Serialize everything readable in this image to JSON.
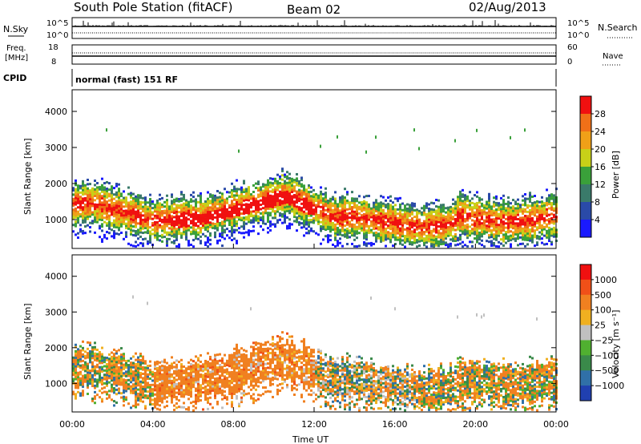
{
  "header": {
    "station": "South Pole Station (fitACF)",
    "beam": "Beam 02",
    "date": "02/Aug/2013"
  },
  "small_panels": {
    "nsky_label": "N.Sky",
    "nsky_ticks": [
      "10^5",
      "10^0"
    ],
    "nsearch_label": "N.Search",
    "nsearch_ticks": [
      "10^5",
      "10^0"
    ],
    "freq_label_line1": "Freq.",
    "freq_label_line2": "[MHz]",
    "freq_ticks": [
      "18",
      "8"
    ],
    "nave_label": "Nave",
    "nave_ticks": [
      "60",
      "0"
    ],
    "cpid_label": "CPID",
    "cpid_text": "normal (fast) 151 RF"
  },
  "chart_data": [
    {
      "type": "heatmap",
      "name": "power",
      "ylabel": "Slant Range [km]",
      "yticks": [
        "1000",
        "2000",
        "3000",
        "4000"
      ],
      "ylim": [
        200,
        4600
      ],
      "colorbar_label": "Power [dB]",
      "colorbar_ticks": [
        "4",
        "8",
        "12",
        "16",
        "20",
        "24",
        "28"
      ],
      "colors": [
        "#1a1aff",
        "#2a4aa8",
        "#3a7a6a",
        "#3aa03a",
        "#c8d018",
        "#f0a018",
        "#f07018",
        "#f01010"
      ]
    },
    {
      "type": "heatmap",
      "name": "velocity",
      "ylabel": "Slant Range [km]",
      "yticks": [
        "1000",
        "2000",
        "3000",
        "4000"
      ],
      "ylim": [
        200,
        4600
      ],
      "xlabel": "Time UT",
      "xticks": [
        "00:00",
        "04:00",
        "08:00",
        "12:00",
        "16:00",
        "20:00",
        "00:00"
      ],
      "colorbar_label": "Velocity [m s⁻¹]",
      "colorbar_ticks": [
        "1000",
        "500",
        "100",
        "25",
        "−25",
        "−100",
        "−500",
        "−1000"
      ],
      "colors": [
        "#2040b0",
        "#3070a8",
        "#3a8a4a",
        "#50b030",
        "#c0c0c0",
        "#f0b020",
        "#f08020",
        "#f05018",
        "#f01010"
      ]
    }
  ]
}
